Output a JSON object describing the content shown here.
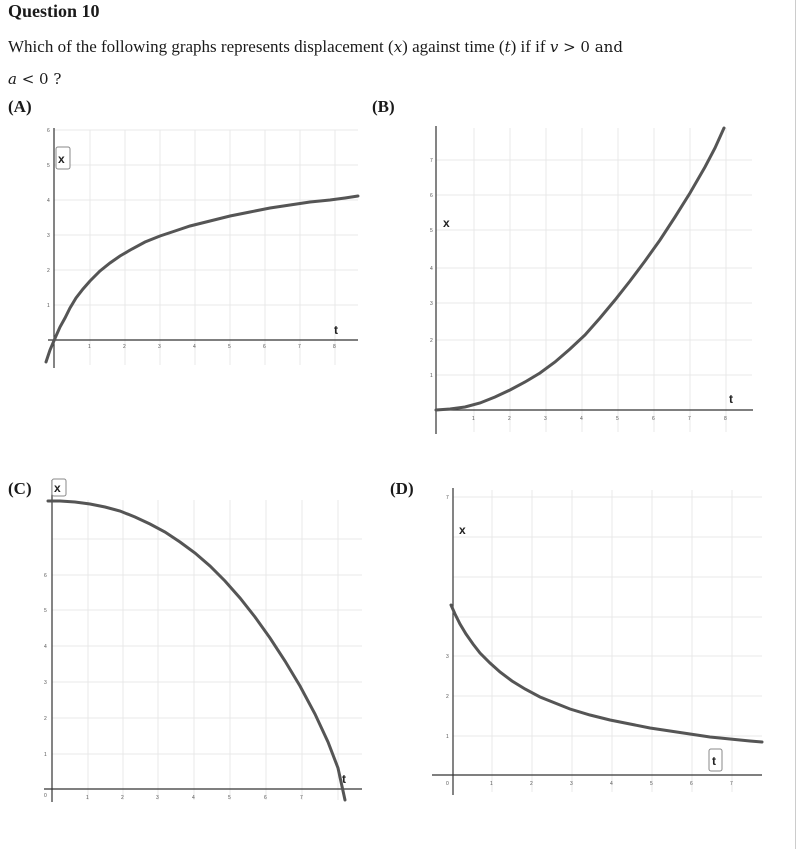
{
  "question": {
    "title": "Question 10",
    "text_prefix": "Which of the following graphs represents displacement (",
    "x_sym": "x",
    "text_mid": ") against time (",
    "t_sym": "t",
    "text_after_t": ") if  if ",
    "v_sym": "v",
    "gt": " > 0 and",
    "a_sym": "a",
    "lt": " < 0 ?"
  },
  "options": [
    {
      "label": "(A)",
      "x_axis_label": "x",
      "t_axis_label": "t",
      "shape": "increasing-concave-down"
    },
    {
      "label": "(B)",
      "x_axis_label": "x",
      "t_axis_label": "t",
      "shape": "increasing-concave-up"
    },
    {
      "label": "(C)",
      "x_axis_label": "x",
      "t_axis_label": "t",
      "shape": "decreasing-concave-down"
    },
    {
      "label": "(D)",
      "x_axis_label": "x",
      "t_axis_label": "t",
      "shape": "decreasing-concave-up"
    }
  ],
  "colors": {
    "curve": "#555555",
    "axis": "#333333",
    "grid": "#e6e6e6"
  }
}
